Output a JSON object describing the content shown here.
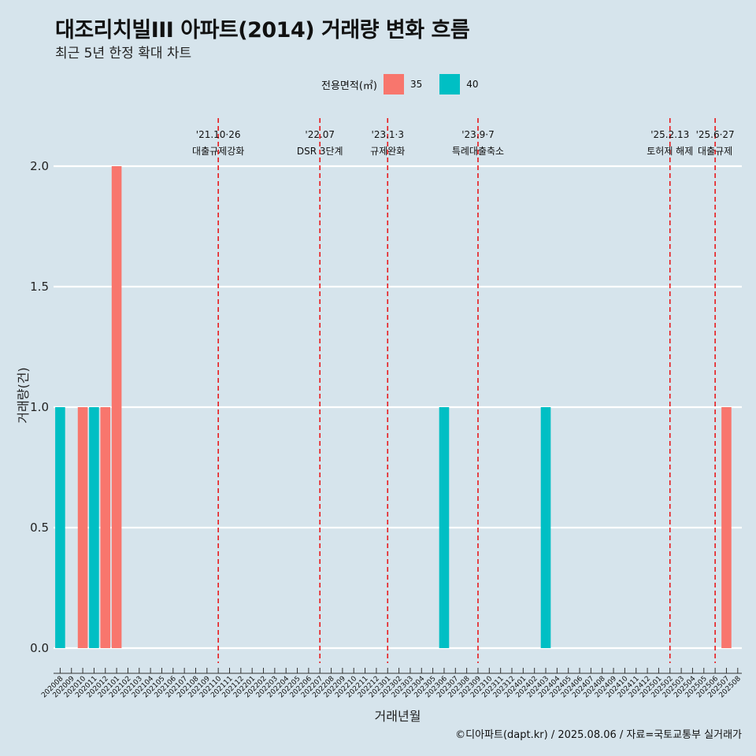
{
  "header": {
    "title": "대조리치빌III 아파트(2014) 거래량 변화 흐름",
    "subtitle": "최근 5년 한정 확대 차트"
  },
  "legend": {
    "title": "전용면적(㎡)",
    "items": [
      {
        "label": "35",
        "color": "#F8766D"
      },
      {
        "label": "40",
        "color": "#00BFC4"
      }
    ]
  },
  "footer": {
    "credit": "©디아파트(dapt.kr) / 2025.08.06 / 자료=국토교통부 실거래가"
  },
  "chart_data": {
    "type": "bar",
    "xlabel": "거래년월",
    "ylabel": "거래량(건)",
    "ylim": [
      0,
      2
    ],
    "yticks": [
      "0.0",
      "0.5",
      "1.0",
      "1.5",
      "2.0"
    ],
    "categories": [
      "202008",
      "202009",
      "202010",
      "202011",
      "202012",
      "202101",
      "202102",
      "202103",
      "202104",
      "202105",
      "202106",
      "202107",
      "202108",
      "202109",
      "202110",
      "202111",
      "202112",
      "202201",
      "202202",
      "202203",
      "202204",
      "202205",
      "202206",
      "202207",
      "202208",
      "202209",
      "202210",
      "202211",
      "202212",
      "202301",
      "202302",
      "202303",
      "202304",
      "202305",
      "202306",
      "202307",
      "202308",
      "202309",
      "202310",
      "202311",
      "202312",
      "202401",
      "202402",
      "202403",
      "202404",
      "202405",
      "202406",
      "202407",
      "202408",
      "202409",
      "202410",
      "202411",
      "202412",
      "202501",
      "202502",
      "202503",
      "202504",
      "202505",
      "202506",
      "202507",
      "202508"
    ],
    "series": [
      {
        "name": "35",
        "color": "#F8766D",
        "points": [
          {
            "x": "202010",
            "y": 1
          },
          {
            "x": "202012",
            "y": 1
          },
          {
            "x": "202101",
            "y": 2
          },
          {
            "x": "202507",
            "y": 1
          }
        ]
      },
      {
        "name": "40",
        "color": "#00BFC4",
        "points": [
          {
            "x": "202008",
            "y": 1
          },
          {
            "x": "202011",
            "y": 1
          },
          {
            "x": "202306",
            "y": 1
          },
          {
            "x": "202403",
            "y": 1
          }
        ]
      }
    ],
    "events": [
      {
        "at": 14.0,
        "date": "'21.10·26",
        "label": "대출규제강화"
      },
      {
        "at": 23.0,
        "date": "'22.07",
        "label": "DSR 3단계"
      },
      {
        "at": 29.0,
        "date": "'23.1·3",
        "label": "규제완화"
      },
      {
        "at": 37.0,
        "date": "'23.9·7",
        "label": "특례대출축소"
      },
      {
        "at": 54.0,
        "date": "'25.2.13",
        "label": "토허제 해제"
      },
      {
        "at": 58.0,
        "date": "'25.6·27",
        "label": "대출규제"
      }
    ],
    "grid": true,
    "legend_position": "top"
  }
}
